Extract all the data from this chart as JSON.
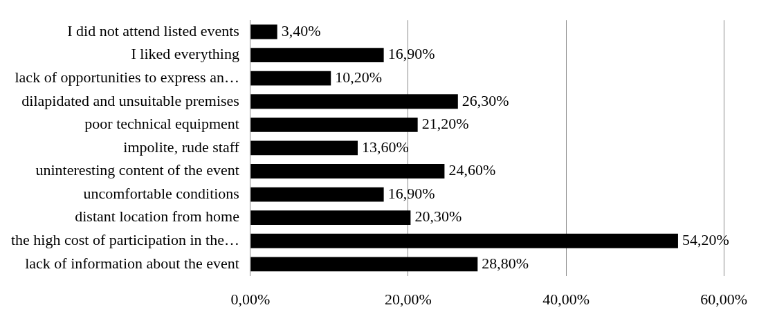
{
  "chart_data": {
    "type": "bar",
    "orientation": "horizontal",
    "categories": [
      "I did not attend listed events",
      "I liked everything",
      "lack of opportunities to express an…",
      "dilapidated and unsuitable premises",
      "poor technical equipment",
      "impolite, rude staff",
      "uninteresting content of the event",
      "uncomfortable conditions",
      "distant location from home",
      "the high cost of participation in the…",
      "lack of information about the event"
    ],
    "values": [
      3.4,
      16.9,
      10.2,
      26.3,
      21.2,
      13.6,
      24.6,
      16.9,
      20.3,
      54.2,
      28.8
    ],
    "value_labels": [
      "3,40%",
      "16,90%",
      "10,20%",
      "26,30%",
      "21,20%",
      "13,60%",
      "24,60%",
      "16,90%",
      "20,30%",
      "54,20%",
      "28,80%"
    ],
    "color": "#000000",
    "xlim": [
      0,
      60
    ],
    "xticks": [
      {
        "value": 0,
        "label": "0,00%"
      },
      {
        "value": 20,
        "label": "20,00%"
      },
      {
        "value": 40,
        "label": "40,00%"
      },
      {
        "value": 60,
        "label": "60,00%"
      }
    ],
    "grid": "x"
  }
}
